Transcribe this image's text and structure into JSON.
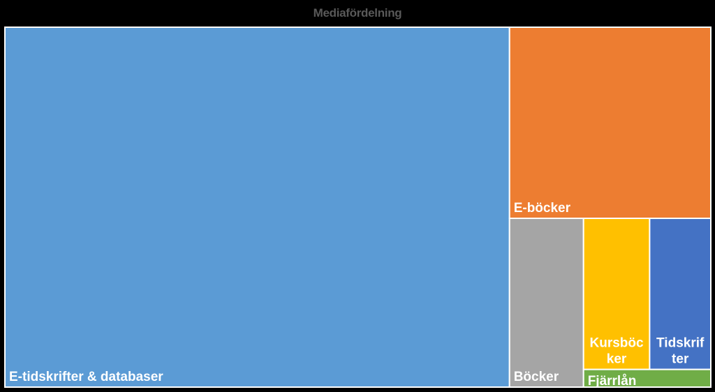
{
  "chart_data": {
    "type": "treemap",
    "title": "Mediafördelning",
    "tiles": [
      {
        "name": "E-tidskrifter & databaser",
        "label_lines": [
          "E-tidskrifter & databaser"
        ],
        "share": 0.727,
        "color": "#5B9BD5"
      },
      {
        "name": "E-böcker",
        "label_lines": [
          "E-böcker"
        ],
        "share": 0.154,
        "color": "#ED7D31"
      },
      {
        "name": "Böcker",
        "label_lines": [
          "Böcker"
        ],
        "share": 0.05,
        "color": "#A5A5A5"
      },
      {
        "name": "Kursböcker",
        "label_lines": [
          "Kursböc",
          "ker"
        ],
        "share": 0.04,
        "color": "#FFC000"
      },
      {
        "name": "Tidskrifter",
        "label_lines": [
          "Tidskrif",
          "ter"
        ],
        "share": 0.037,
        "color": "#4472C4"
      },
      {
        "name": "Fjärrlån",
        "label_lines": [
          "Fjärrlån"
        ],
        "share": 0.009,
        "color": "#70AD47"
      }
    ]
  }
}
